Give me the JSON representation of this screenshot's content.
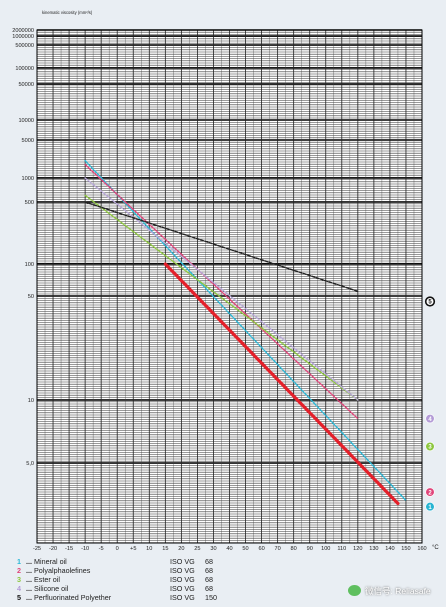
{
  "chart_data": {
    "type": "line",
    "ylabel": "kinematic viscosity (mm²/s)",
    "xlabel_unit": "°C",
    "x_ticks": [
      "-25",
      "-20",
      "-15",
      "-10",
      "-5",
      "0",
      "+5",
      "10",
      "15",
      "20",
      "25",
      "30",
      "40",
      "50",
      "60",
      "70",
      "80",
      "90",
      "100",
      "110",
      "120",
      "130",
      "140",
      "150",
      "160"
    ],
    "y_tick_labels": [
      {
        "label": "2000000",
        "value": 2000000
      },
      {
        "label": "1000000",
        "value": 1000000
      },
      {
        "label": "500000",
        "value": 500000
      },
      {
        "label": "100000",
        "value": 100000
      },
      {
        "label": "50000",
        "value": 50000
      },
      {
        "label": "10000",
        "value": 10000
      },
      {
        "label": "5000",
        "value": 5000
      },
      {
        "label": "1000",
        "value": 1000
      },
      {
        "label": "500",
        "value": 500
      },
      {
        "label": "100",
        "value": 100
      },
      {
        "label": "50",
        "value": 50
      },
      {
        "label": "10",
        "value": 10
      },
      {
        "label": "5,0",
        "value": 5
      }
    ],
    "y_scale": "log-log (Ubbelohde)",
    "grid": true,
    "series": [
      {
        "name": "Mineral oil",
        "id": "1",
        "color": "#2ab7d6",
        "points": [
          [
            -10,
            2000
          ],
          [
            150,
            3.3
          ]
        ]
      },
      {
        "name": "Polyalphaolefines",
        "id": "2",
        "color": "#e0457a",
        "points": [
          [
            -10,
            1700
          ],
          [
            120,
            8
          ]
        ]
      },
      {
        "name": "Ester oil",
        "id": "3",
        "color": "#8cc63e",
        "points": [
          [
            -10,
            600
          ],
          [
            120,
            10
          ]
        ]
      },
      {
        "name": "Silicone oil",
        "id": "4",
        "color": "#b8a8d8",
        "points": [
          [
            -10,
            1000
          ],
          [
            120,
            10
          ]
        ]
      },
      {
        "name": "Perfluorinated Polyether",
        "id": "5",
        "color": "#222222",
        "points": [
          [
            -10,
            500
          ],
          [
            120,
            55
          ]
        ]
      },
      {
        "name": "highlighted",
        "id": "red",
        "color": "#e4202a",
        "points": [
          [
            15,
            100
          ],
          [
            145,
            3.2
          ]
        ]
      }
    ],
    "right_markers": [
      {
        "id": "5",
        "value": 45,
        "color": "#111111"
      },
      {
        "id": "4",
        "value": 8,
        "color": "#b39bd6"
      },
      {
        "id": "3",
        "value": 5.9,
        "color": "#8cc63e"
      },
      {
        "id": "2",
        "value": 3.6,
        "color": "#e0457a"
      },
      {
        "id": "1",
        "value": 3.1,
        "color": "#27b4d2"
      }
    ]
  },
  "legend": [
    {
      "num": "1",
      "dots": "...",
      "name": "Mineral oil",
      "iso": "ISO VG",
      "value": "68",
      "color": "#2ab7d6"
    },
    {
      "num": "2",
      "dots": "...",
      "name": "Polyalphaolefines",
      "iso": "ISO VG",
      "value": "68",
      "color": "#e0457a"
    },
    {
      "num": "3",
      "dots": "...",
      "name": "Ester oil",
      "iso": "ISO VG",
      "value": "68",
      "color": "#8cc63e"
    },
    {
      "num": "4",
      "dots": "...",
      "name": "Silicone oil",
      "iso": "ISO VG",
      "value": "68",
      "color": "#b39bd6"
    },
    {
      "num": "5",
      "dots": "...",
      "name": "Perfluorinated Polyether",
      "iso": "ISO VG",
      "value": "150",
      "color": "#111111"
    }
  ],
  "watermark": {
    "text": "微信号: Reliasafe",
    "icon": "wechat-icon"
  }
}
